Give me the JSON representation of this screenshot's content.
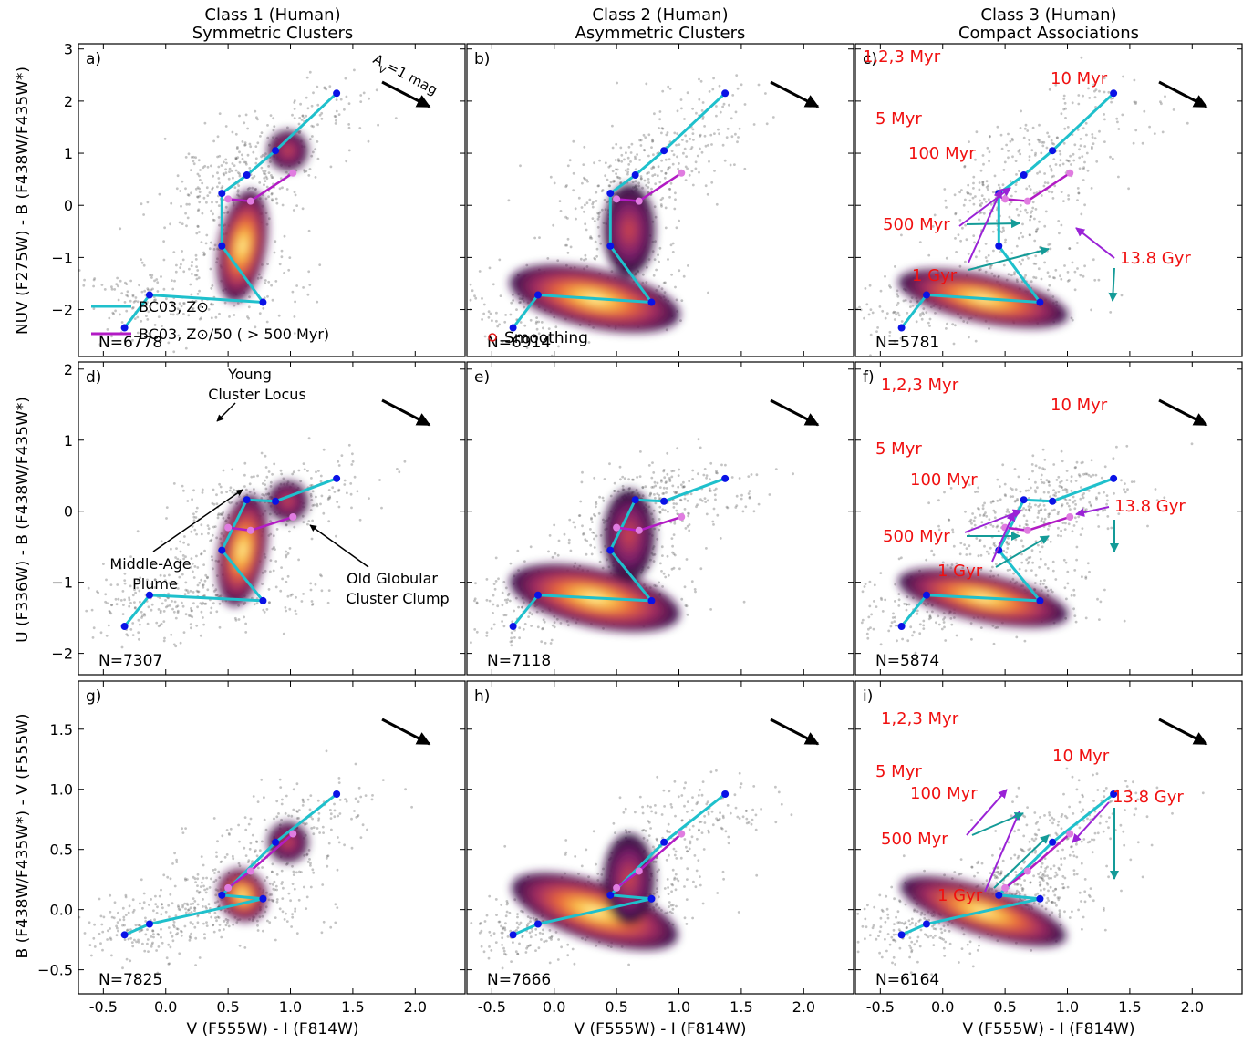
{
  "figure": {
    "column_titles": [
      {
        "line1": "Class 1 (Human)",
        "line2": "Symmetric Clusters"
      },
      {
        "line1": "Class 2 (Human)",
        "line2": "Asymmetric Clusters"
      },
      {
        "line1": "Class 3 (Human)",
        "line2": "Compact Associations"
      }
    ],
    "row_ylabels": [
      "NUV (F275W) - B (F438W/F435W*)",
      "U (F336W) - B (F438W/F435W*)",
      "B (F438W/F435W*) - V (F555W)"
    ],
    "xlabel": "V (F555W) - I (F814W)",
    "extinction_label": "A_V=1 mag",
    "legend": {
      "solar": "BC03, Z⊙",
      "subsolar": "BC03, Z⊙/50 ( > 500 Myr)",
      "smoothing": "Smoothing"
    },
    "colors": {
      "solar_track": "#1fc0cc",
      "subsolar_track": "#b21bc4",
      "age_dot": "#0a12e6",
      "old_dot": "#e07ce0",
      "annot_red": "#f01010",
      "arrow_teal": "#149b98",
      "arrow_purple": "#9a22d6",
      "smoothing_circle": "#e01a1a"
    },
    "feature_labels": {
      "young_locus": [
        "Young",
        "Cluster Locus"
      ],
      "middle_age": [
        "Middle-Age",
        "Plume"
      ],
      "old_gc": [
        "Old Globular",
        "Cluster Clump"
      ]
    },
    "age_labels": {
      "myr123": "1,2,3 Myr",
      "myr5": "5 Myr",
      "myr10": "10 Myr",
      "myr100": "100 Myr",
      "myr500": "500 Myr",
      "gyr1": "1 Gyr",
      "gyr13": "13.8 Gyr"
    }
  },
  "chart_data": [
    {
      "panel": "a)",
      "type": "scatter",
      "row": "NUV-B",
      "class": "Class 1 (Human)",
      "n_label": "N=6778",
      "xlim": [
        -0.7,
        2.4
      ],
      "ylim": [
        3.1,
        -2.9
      ],
      "xticks": [
        -0.5,
        0.0,
        0.5,
        1.0,
        1.5,
        2.0
      ],
      "yticks": [
        -2,
        -1,
        0,
        1,
        2,
        3
      ],
      "bc03_solar_ages": [
        [
          -0.33,
          -2.35
        ],
        [
          -0.13,
          -1.72
        ],
        [
          0.78,
          -1.86
        ],
        [
          0.45,
          -0.78
        ],
        [
          0.45,
          0.23
        ],
        [
          0.65,
          0.58
        ],
        [
          0.88,
          1.05
        ],
        [
          1.37,
          2.15
        ]
      ],
      "bc03_subsolar": [
        [
          0.5,
          0.12
        ],
        [
          0.68,
          0.08
        ],
        [
          1.02,
          0.62
        ]
      ]
    },
    {
      "panel": "b)",
      "type": "scatter",
      "row": "NUV-B",
      "class": "Class 2 (Human)",
      "n_label": "N=6914",
      "xlim": [
        -0.7,
        2.4
      ],
      "ylim": [
        3.1,
        -2.9
      ],
      "xticks": [
        -0.5,
        0.0,
        0.5,
        1.0,
        1.5,
        2.0
      ],
      "yticks": [
        -2,
        -1,
        0,
        1,
        2,
        3
      ],
      "bc03_solar_ages": [
        [
          -0.33,
          -2.35
        ],
        [
          -0.13,
          -1.72
        ],
        [
          0.78,
          -1.86
        ],
        [
          0.45,
          -0.78
        ],
        [
          0.45,
          0.23
        ],
        [
          0.65,
          0.58
        ],
        [
          0.88,
          1.05
        ],
        [
          1.37,
          2.15
        ]
      ],
      "bc03_subsolar": [
        [
          0.5,
          0.12
        ],
        [
          0.68,
          0.08
        ],
        [
          1.02,
          0.62
        ]
      ]
    },
    {
      "panel": "c)",
      "type": "scatter",
      "row": "NUV-B",
      "class": "Class 3 (Human)",
      "n_label": "N=5781",
      "xlim": [
        -0.7,
        2.4
      ],
      "ylim": [
        3.1,
        -2.9
      ],
      "xticks": [
        -0.5,
        0.0,
        0.5,
        1.0,
        1.5,
        2.0
      ],
      "yticks": [
        -2,
        -1,
        0,
        1,
        2,
        3
      ],
      "bc03_solar_ages": [
        [
          -0.33,
          -2.35
        ],
        [
          -0.13,
          -1.72
        ],
        [
          0.78,
          -1.86
        ],
        [
          0.45,
          -0.78
        ],
        [
          0.45,
          0.23
        ],
        [
          0.65,
          0.58
        ],
        [
          0.88,
          1.05
        ],
        [
          1.37,
          2.15
        ]
      ],
      "bc03_subsolar": [
        [
          0.5,
          0.12
        ],
        [
          0.68,
          0.08
        ],
        [
          1.02,
          0.62
        ]
      ]
    },
    {
      "panel": "d)",
      "type": "scatter",
      "row": "U-B",
      "class": "Class 1 (Human)",
      "n_label": "N=7307",
      "xlim": [
        -0.7,
        2.4
      ],
      "ylim": [
        2.1,
        -2.3
      ],
      "xticks": [
        -0.5,
        0.0,
        0.5,
        1.0,
        1.5,
        2.0
      ],
      "yticks": [
        -2,
        -1,
        0,
        1,
        2
      ],
      "bc03_solar_ages": [
        [
          -0.33,
          -1.62
        ],
        [
          -0.13,
          -1.18
        ],
        [
          0.78,
          -1.26
        ],
        [
          0.45,
          -0.55
        ],
        [
          0.65,
          0.16
        ],
        [
          0.88,
          0.14
        ],
        [
          1.37,
          0.46
        ]
      ],
      "bc03_subsolar": [
        [
          0.5,
          -0.23
        ],
        [
          0.68,
          -0.27
        ],
        [
          1.02,
          -0.08
        ]
      ]
    },
    {
      "panel": "e)",
      "type": "scatter",
      "row": "U-B",
      "class": "Class 2 (Human)",
      "n_label": "N=7118",
      "xlim": [
        -0.7,
        2.4
      ],
      "ylim": [
        2.1,
        -2.3
      ],
      "xticks": [
        -0.5,
        0.0,
        0.5,
        1.0,
        1.5,
        2.0
      ],
      "yticks": [
        -2,
        -1,
        0,
        1,
        2
      ],
      "bc03_solar_ages": [
        [
          -0.33,
          -1.62
        ],
        [
          -0.13,
          -1.18
        ],
        [
          0.78,
          -1.26
        ],
        [
          0.45,
          -0.55
        ],
        [
          0.65,
          0.16
        ],
        [
          0.88,
          0.14
        ],
        [
          1.37,
          0.46
        ]
      ],
      "bc03_subsolar": [
        [
          0.5,
          -0.23
        ],
        [
          0.68,
          -0.27
        ],
        [
          1.02,
          -0.08
        ]
      ]
    },
    {
      "panel": "f)",
      "type": "scatter",
      "row": "U-B",
      "class": "Class 3 (Human)",
      "n_label": "N=5874",
      "xlim": [
        -0.7,
        2.4
      ],
      "ylim": [
        2.1,
        -2.3
      ],
      "xticks": [
        -0.5,
        0.0,
        0.5,
        1.0,
        1.5,
        2.0
      ],
      "yticks": [
        -2,
        -1,
        0,
        1,
        2
      ],
      "bc03_solar_ages": [
        [
          -0.33,
          -1.62
        ],
        [
          -0.13,
          -1.18
        ],
        [
          0.78,
          -1.26
        ],
        [
          0.45,
          -0.55
        ],
        [
          0.65,
          0.16
        ],
        [
          0.88,
          0.14
        ],
        [
          1.37,
          0.46
        ]
      ],
      "bc03_subsolar": [
        [
          0.5,
          -0.23
        ],
        [
          0.68,
          -0.27
        ],
        [
          1.02,
          -0.08
        ]
      ]
    },
    {
      "panel": "g)",
      "type": "scatter",
      "row": "B-V",
      "class": "Class 1 (Human)",
      "n_label": "N=7825",
      "xlim": [
        -0.7,
        2.4
      ],
      "ylim": [
        1.9,
        -0.7
      ],
      "xticks": [
        -0.5,
        0.0,
        0.5,
        1.0,
        1.5,
        2.0
      ],
      "yticks": [
        -0.5,
        0.0,
        0.5,
        1.0,
        1.5
      ],
      "bc03_solar_ages": [
        [
          -0.33,
          -0.21
        ],
        [
          -0.13,
          -0.12
        ],
        [
          0.78,
          0.09
        ],
        [
          0.45,
          0.12
        ],
        [
          0.88,
          0.56
        ],
        [
          1.37,
          0.96
        ]
      ],
      "bc03_subsolar": [
        [
          0.5,
          0.18
        ],
        [
          0.68,
          0.32
        ],
        [
          1.02,
          0.63
        ]
      ]
    },
    {
      "panel": "h)",
      "type": "scatter",
      "row": "B-V",
      "class": "Class 2 (Human)",
      "n_label": "N=7666",
      "xlim": [
        -0.7,
        2.4
      ],
      "ylim": [
        1.9,
        -0.7
      ],
      "xticks": [
        -0.5,
        0.0,
        0.5,
        1.0,
        1.5,
        2.0
      ],
      "yticks": [
        -0.5,
        0.0,
        0.5,
        1.0,
        1.5
      ],
      "bc03_solar_ages": [
        [
          -0.33,
          -0.21
        ],
        [
          -0.13,
          -0.12
        ],
        [
          0.78,
          0.09
        ],
        [
          0.45,
          0.12
        ],
        [
          0.88,
          0.56
        ],
        [
          1.37,
          0.96
        ]
      ],
      "bc03_subsolar": [
        [
          0.5,
          0.18
        ],
        [
          0.68,
          0.32
        ],
        [
          1.02,
          0.63
        ]
      ]
    },
    {
      "panel": "i)",
      "type": "scatter",
      "row": "B-V",
      "class": "Class 3 (Human)",
      "n_label": "N=6164",
      "xlim": [
        -0.7,
        2.4
      ],
      "ylim": [
        1.9,
        -0.7
      ],
      "xticks": [
        -0.5,
        0.0,
        0.5,
        1.0,
        1.5,
        2.0
      ],
      "yticks": [
        -0.5,
        0.0,
        0.5,
        1.0,
        1.5
      ],
      "bc03_solar_ages": [
        [
          -0.33,
          -0.21
        ],
        [
          -0.13,
          -0.12
        ],
        [
          0.78,
          0.09
        ],
        [
          0.45,
          0.12
        ],
        [
          0.88,
          0.56
        ],
        [
          1.37,
          0.96
        ]
      ],
      "bc03_subsolar": [
        [
          0.5,
          0.18
        ],
        [
          0.68,
          0.32
        ],
        [
          1.02,
          0.63
        ]
      ]
    }
  ]
}
